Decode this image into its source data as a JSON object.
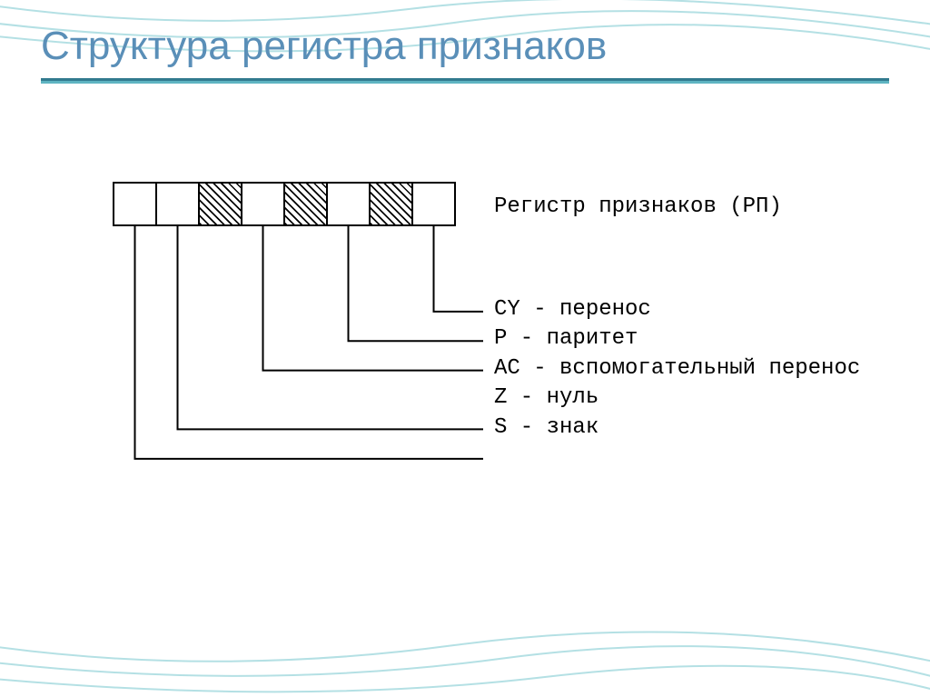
{
  "title": "Структура регистра признаков",
  "title_color": "#5a8fb8",
  "title_fontsize": 44,
  "underline_colors": [
    "#317a8e",
    "#5fb5c2"
  ],
  "background_color": "#ffffff",
  "decorative_line_color": "#b4e0e4",
  "register": {
    "label": "Регистр признаков (РП)",
    "cell_count": 8,
    "cell_size": 49,
    "cell_border_color": "#000000",
    "hatched_cells": [
      2,
      4,
      6
    ],
    "hatch_color": "#000000"
  },
  "flags": [
    {
      "code": "CY",
      "name": "перенос",
      "from_cell": 7
    },
    {
      "code": "P",
      "name": "паритет",
      "from_cell": 5
    },
    {
      "code": "AC",
      "name": "вспомогательный перенос",
      "from_cell": 3
    },
    {
      "code": "Z",
      "name": "нуль",
      "from_cell": 1
    },
    {
      "code": "S",
      "name": "знак",
      "from_cell": 0
    }
  ],
  "connector_color": "#000000",
  "connector_width": 2,
  "label_font": "Courier New",
  "label_fontsize": 24
}
